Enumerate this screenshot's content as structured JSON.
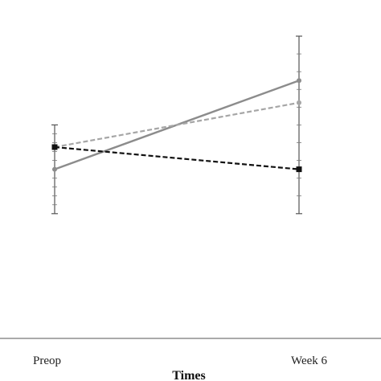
{
  "chart_data": {
    "type": "line",
    "categories": [
      "Preop",
      "Week 6"
    ],
    "xlabel": "Times",
    "ylabel": "",
    "title": "",
    "ylim": [
      0,
      100
    ],
    "grid": false,
    "legend": "none",
    "series": [
      {
        "values": [
          40,
          80
        ],
        "error_low": [
          20,
          20
        ],
        "error_high": [
          60,
          100
        ],
        "color": "#8c8c8c",
        "dash": "solid",
        "marker": "circle"
      },
      {
        "values": [
          50,
          70
        ],
        "error_low": [
          null,
          null
        ],
        "error_high": [
          null,
          null
        ],
        "color": "#a6a6a6",
        "dash": "dashed",
        "marker": "circle"
      },
      {
        "values": [
          50,
          40
        ],
        "error_low": [
          null,
          null
        ],
        "error_high": [
          null,
          null
        ],
        "color": "#111111",
        "dash": "dashed",
        "marker": "square"
      }
    ]
  }
}
